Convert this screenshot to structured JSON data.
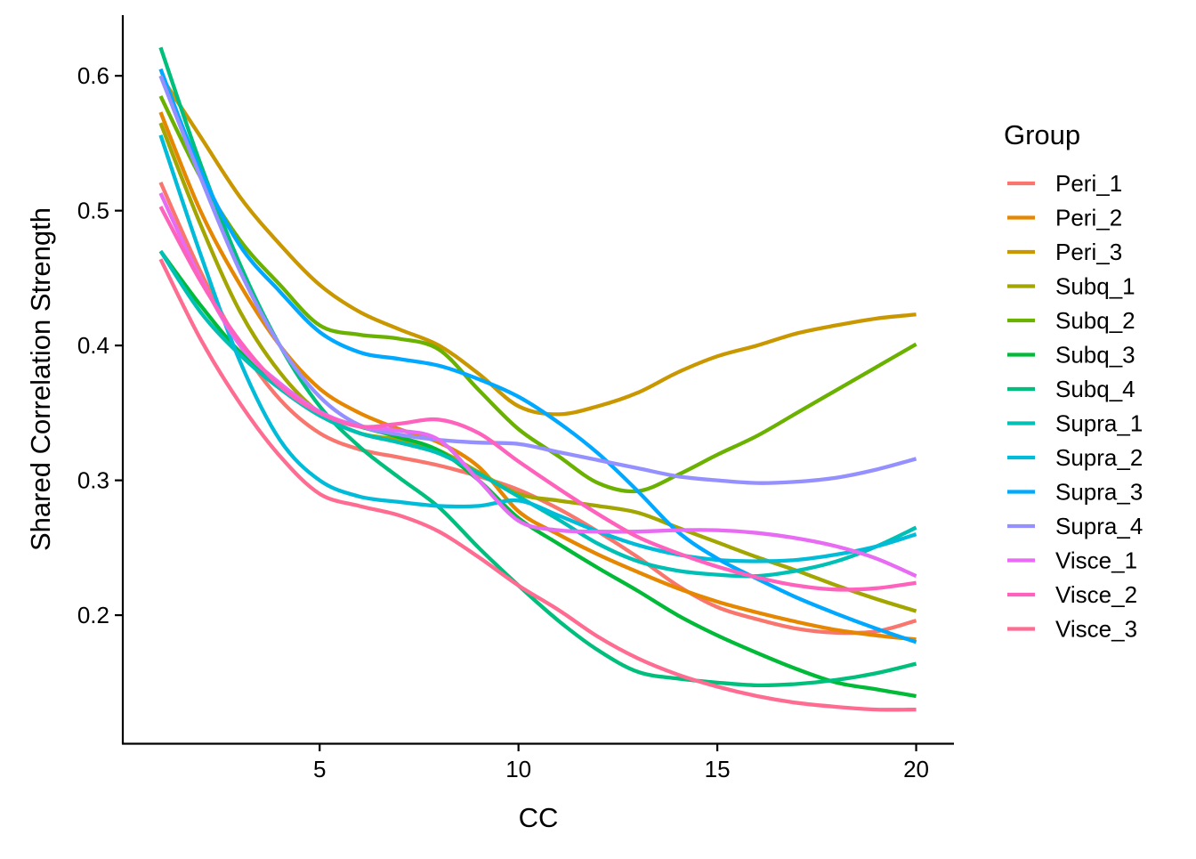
{
  "chart_data": {
    "type": "line",
    "xlabel": "CC",
    "ylabel": "Shared Correlation Strength",
    "xlim": [
      0.05,
      20.95
    ],
    "ylim": [
      0.105,
      0.645
    ],
    "x_ticks": [
      5,
      10,
      15,
      20
    ],
    "x_tick_labels": [
      "5",
      "10",
      "15",
      "20"
    ],
    "y_ticks": [
      0.2,
      0.3,
      0.4,
      0.5,
      0.6
    ],
    "y_tick_labels": [
      "0.2",
      "0.3",
      "0.4",
      "0.5",
      "0.6"
    ],
    "grid": false,
    "legend": {
      "title": "Group",
      "position": "right"
    },
    "x": [
      1,
      2,
      3,
      4,
      5,
      6,
      7,
      8,
      9,
      10,
      11,
      12,
      13,
      14,
      15,
      16,
      17,
      18,
      19,
      20
    ],
    "series": [
      {
        "name": "Peri_1",
        "color": "#F8766D",
        "values": [
          0.521,
          0.455,
          0.4,
          0.36,
          0.335,
          0.323,
          0.317,
          0.311,
          0.303,
          0.293,
          0.279,
          0.262,
          0.243,
          0.222,
          0.206,
          0.197,
          0.19,
          0.187,
          0.188,
          0.196
        ]
      },
      {
        "name": "Peri_2",
        "color": "#E58700",
        "values": [
          0.573,
          0.5,
          0.445,
          0.4,
          0.368,
          0.35,
          0.338,
          0.328,
          0.31,
          0.277,
          0.26,
          0.245,
          0.232,
          0.22,
          0.21,
          0.202,
          0.195,
          0.189,
          0.185,
          0.182
        ]
      },
      {
        "name": "Peri_3",
        "color": "#C99800",
        "values": [
          0.6,
          0.555,
          0.51,
          0.475,
          0.445,
          0.425,
          0.412,
          0.4,
          0.379,
          0.355,
          0.349,
          0.355,
          0.365,
          0.38,
          0.392,
          0.4,
          0.409,
          0.415,
          0.42,
          0.423
        ]
      },
      {
        "name": "Subq_1",
        "color": "#A3A500",
        "values": [
          0.565,
          0.49,
          0.425,
          0.38,
          0.35,
          0.335,
          0.33,
          0.322,
          0.306,
          0.29,
          0.285,
          0.281,
          0.276,
          0.265,
          0.254,
          0.243,
          0.233,
          0.222,
          0.212,
          0.203
        ]
      },
      {
        "name": "Subq_2",
        "color": "#6BB100",
        "values": [
          0.585,
          0.525,
          0.478,
          0.445,
          0.415,
          0.408,
          0.405,
          0.397,
          0.367,
          0.338,
          0.318,
          0.298,
          0.292,
          0.304,
          0.319,
          0.333,
          0.35,
          0.367,
          0.384,
          0.401
        ]
      },
      {
        "name": "Subq_3",
        "color": "#00BA38",
        "values": [
          0.47,
          0.43,
          0.395,
          0.37,
          0.35,
          0.34,
          0.332,
          0.322,
          0.3,
          0.272,
          0.253,
          0.235,
          0.218,
          0.2,
          0.185,
          0.172,
          0.16,
          0.15,
          0.145,
          0.14
        ]
      },
      {
        "name": "Subq_4",
        "color": "#00BF7D",
        "values": [
          0.621,
          0.535,
          0.46,
          0.4,
          0.355,
          0.325,
          0.302,
          0.28,
          0.25,
          0.222,
          0.196,
          0.174,
          0.158,
          0.153,
          0.15,
          0.148,
          0.149,
          0.152,
          0.157,
          0.164
        ]
      },
      {
        "name": "Supra_1",
        "color": "#00C0B5",
        "values": [
          0.47,
          0.425,
          0.393,
          0.368,
          0.348,
          0.335,
          0.328,
          0.32,
          0.305,
          0.288,
          0.271,
          0.253,
          0.24,
          0.233,
          0.23,
          0.229,
          0.233,
          0.24,
          0.251,
          0.265
        ]
      },
      {
        "name": "Supra_2",
        "color": "#00BCD8",
        "values": [
          0.556,
          0.468,
          0.388,
          0.33,
          0.3,
          0.288,
          0.284,
          0.281,
          0.281,
          0.285,
          0.274,
          0.262,
          0.252,
          0.245,
          0.241,
          0.24,
          0.241,
          0.245,
          0.251,
          0.26
        ]
      },
      {
        "name": "Supra_3",
        "color": "#00A9FF",
        "values": [
          0.605,
          0.53,
          0.474,
          0.44,
          0.41,
          0.395,
          0.39,
          0.385,
          0.375,
          0.362,
          0.343,
          0.32,
          0.292,
          0.262,
          0.242,
          0.227,
          0.213,
          0.201,
          0.19,
          0.18
        ]
      },
      {
        "name": "Supra_4",
        "color": "#9590FF",
        "values": [
          0.6,
          0.525,
          0.455,
          0.4,
          0.362,
          0.341,
          0.334,
          0.33,
          0.328,
          0.327,
          0.321,
          0.315,
          0.309,
          0.303,
          0.3,
          0.298,
          0.299,
          0.302,
          0.308,
          0.316
        ]
      },
      {
        "name": "Visce_1",
        "color": "#E76BF3",
        "values": [
          0.513,
          0.45,
          0.4,
          0.372,
          0.351,
          0.34,
          0.337,
          0.33,
          0.3,
          0.27,
          0.263,
          0.262,
          0.262,
          0.263,
          0.263,
          0.261,
          0.257,
          0.251,
          0.242,
          0.229
        ]
      },
      {
        "name": "Visce_2",
        "color": "#FF62BC",
        "values": [
          0.503,
          0.448,
          0.403,
          0.37,
          0.35,
          0.34,
          0.342,
          0.345,
          0.335,
          0.314,
          0.294,
          0.275,
          0.258,
          0.246,
          0.236,
          0.228,
          0.222,
          0.219,
          0.22,
          0.224
        ]
      },
      {
        "name": "Visce_3",
        "color": "#FF6C91",
        "values": [
          0.464,
          0.405,
          0.357,
          0.318,
          0.29,
          0.281,
          0.274,
          0.262,
          0.243,
          0.222,
          0.204,
          0.184,
          0.168,
          0.156,
          0.147,
          0.14,
          0.135,
          0.132,
          0.13,
          0.13
        ]
      }
    ]
  }
}
